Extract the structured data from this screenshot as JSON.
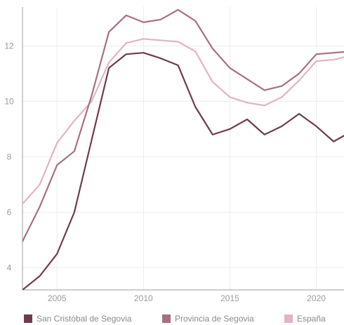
{
  "chart_data": {
    "type": "line",
    "title": "",
    "xlabel": "",
    "ylabel": "",
    "x": [
      2003,
      2004,
      2005,
      2006,
      2007,
      2008,
      2009,
      2010,
      2011,
      2012,
      2013,
      2014,
      2015,
      2016,
      2017,
      2018,
      2019,
      2020,
      2021,
      2022
    ],
    "xlim": [
      2003,
      2021.6
    ],
    "ylim": [
      3.2,
      13.4
    ],
    "xticks": [
      2005,
      2010,
      2015,
      2020
    ],
    "yticks": [
      4,
      6,
      8,
      10,
      12
    ],
    "grid": true,
    "legend_position": "bottom",
    "series": [
      {
        "name": "San Cristóbal de Segovia",
        "color": "#6e3b4e",
        "values": [
          3.2,
          3.7,
          4.5,
          6.0,
          8.6,
          11.2,
          11.7,
          11.75,
          11.55,
          11.3,
          9.8,
          8.8,
          9.0,
          9.35,
          8.8,
          9.1,
          9.55,
          9.1,
          8.55,
          8.9
        ]
      },
      {
        "name": "Provincia de Segovia",
        "color": "#a6707f",
        "values": [
          4.95,
          6.2,
          7.7,
          8.2,
          10.2,
          12.5,
          13.1,
          12.85,
          12.95,
          13.3,
          12.9,
          11.9,
          11.2,
          10.8,
          10.4,
          10.55,
          11.0,
          11.7,
          11.75,
          11.8
        ]
      },
      {
        "name": "España",
        "color": "#e2b3c3",
        "values": [
          6.3,
          7.0,
          8.5,
          9.3,
          10.0,
          11.4,
          12.1,
          12.25,
          12.2,
          12.15,
          11.8,
          10.7,
          10.15,
          9.95,
          9.85,
          10.15,
          10.75,
          11.45,
          11.5,
          11.65
        ]
      }
    ]
  }
}
